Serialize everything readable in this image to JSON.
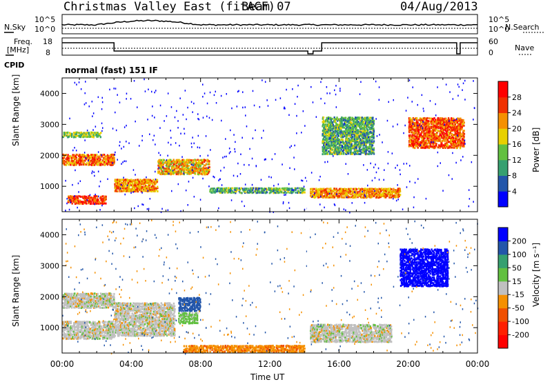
{
  "header": {
    "station": "Christmas Valley East (fitACF)",
    "beam": "Beam 07",
    "date": "04/Aug/2013"
  },
  "summary": {
    "nsky_label": "N.Sky",
    "nsearch_label": "N.Search",
    "freq_label_1": "Freq.",
    "freq_label_2": "[MHz]",
    "nave_label": "Nave",
    "cpid_label": "CPID",
    "cpid_text": "normal (fast) 151 IF",
    "noise_ticks_left": [
      "10^5",
      "10^0"
    ],
    "noise_ticks_right": [
      "10^5",
      "10^0"
    ],
    "freq_ticks": [
      "18",
      "8"
    ],
    "nave_ticks": [
      "60",
      "0"
    ]
  },
  "chart_data": [
    {
      "type": "heatmap",
      "name": "power-panel",
      "ylabel": "Slant Range [km]",
      "yticks": [
        1000,
        2000,
        3000,
        4000
      ],
      "ylim": [
        180,
        4500
      ],
      "xlim": [
        0,
        24
      ],
      "colorbar": {
        "label": "Power [dB]",
        "ticks": [
          "4",
          "8",
          "12",
          "16",
          "20",
          "24",
          "28"
        ],
        "colors": [
          "#0000ff",
          "#2356aa",
          "#36a070",
          "#62c040",
          "#e8d000",
          "#f59000",
          "#f03000",
          "#ff0000"
        ]
      },
      "echo_bands": [
        {
          "t0": 0,
          "t1": 3.0,
          "r0": 1650,
          "r1": 2000,
          "level": 24
        },
        {
          "t0": 0,
          "t1": 2.2,
          "r0": 2550,
          "r1": 2750,
          "level": 14
        },
        {
          "t0": 0.3,
          "t1": 2.5,
          "r0": 400,
          "r1": 650,
          "level": 26
        },
        {
          "t0": 3.0,
          "t1": 5.5,
          "r0": 800,
          "r1": 1200,
          "level": 22
        },
        {
          "t0": 5.5,
          "t1": 8.5,
          "r0": 1350,
          "r1": 1850,
          "level": 20
        },
        {
          "t0": 8.5,
          "t1": 14.0,
          "r0": 750,
          "r1": 950,
          "level": 12
        },
        {
          "t0": 14.3,
          "t1": 19.5,
          "r0": 600,
          "r1": 900,
          "level": 22
        },
        {
          "t0": 20.0,
          "t1": 23.2,
          "r0": 2200,
          "r1": 3200,
          "level": 25
        },
        {
          "t0": 15.0,
          "t1": 18.0,
          "r0": 2000,
          "r1": 3200,
          "level": 12
        }
      ]
    },
    {
      "type": "heatmap",
      "name": "velocity-panel",
      "ylabel": "Slant Range [km]",
      "yticks": [
        1000,
        2000,
        3000,
        4000
      ],
      "ylim": [
        180,
        4500
      ],
      "xlim": [
        0,
        24
      ],
      "xlabel": "Time UT",
      "xticks": [
        "00:00",
        "04:00",
        "08:00",
        "12:00",
        "16:00",
        "20:00",
        "00:00"
      ],
      "colorbar": {
        "label": "Velocity [m s⁻¹]",
        "ticks": [
          "200",
          "100",
          "50",
          "15",
          "-15",
          "-50",
          "-100",
          "-200"
        ],
        "colors": [
          "#0000ff",
          "#2356aa",
          "#36a070",
          "#62c040",
          "#c0c0c0",
          "#f59000",
          "#f05000",
          "#ff2000",
          "#ff0000"
        ]
      },
      "echo_bands": [
        {
          "t0": 0,
          "t1": 3.0,
          "r0": 1600,
          "r1": 2100,
          "level": 0
        },
        {
          "t0": 0,
          "t1": 3.0,
          "r0": 600,
          "r1": 1200,
          "level": 0
        },
        {
          "t0": 3.0,
          "t1": 6.5,
          "r0": 700,
          "r1": 1800,
          "level": 0
        },
        {
          "t0": 6.7,
          "t1": 8.0,
          "r0": 1500,
          "r1": 1950,
          "level": 150
        },
        {
          "t0": 6.7,
          "t1": 7.8,
          "r0": 1100,
          "r1": 1450,
          "level": 30
        },
        {
          "t0": 7.0,
          "t1": 14.0,
          "r0": 180,
          "r1": 400,
          "level": -40
        },
        {
          "t0": 14.3,
          "t1": 19.0,
          "r0": 500,
          "r1": 1100,
          "level": 0
        },
        {
          "t0": 19.5,
          "t1": 22.3,
          "r0": 2300,
          "r1": 3500,
          "level": 250
        }
      ]
    }
  ]
}
